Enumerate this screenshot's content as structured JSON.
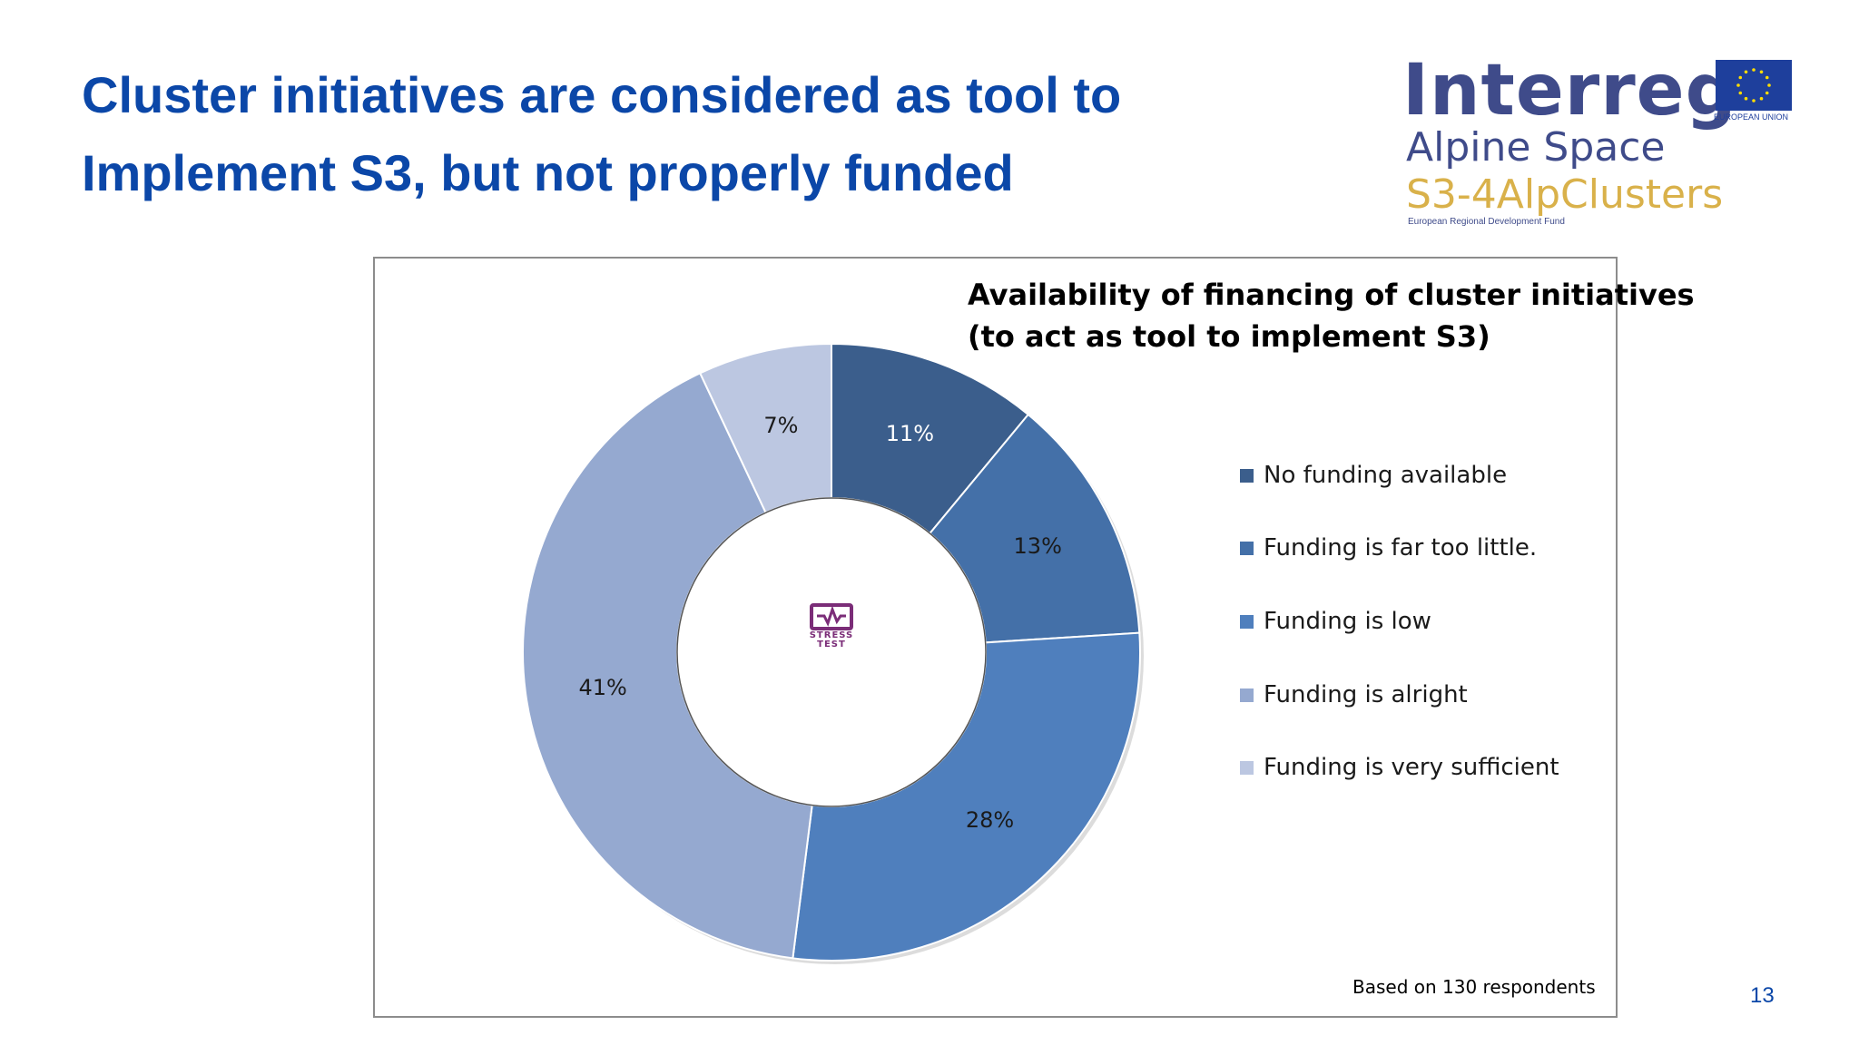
{
  "slide": {
    "title_lines": [
      "Cluster initiatives are considered as tool to",
      "Implement S3, but not properly funded"
    ],
    "page_number": "13",
    "footnote": "Based on 130 respondents"
  },
  "logo": {
    "wordmark": "Interreg",
    "region": "Alpine Space",
    "project": "S3-4AlpClusters",
    "fund": "European Regional Development Fund",
    "eu_label": "EUROPEAN UNION",
    "colors": {
      "navy": "#3f4b8a",
      "gold": "#d9b14a",
      "eu_blue": "#1e3f9c",
      "eu_star": "#ffdd00"
    }
  },
  "badge": {
    "line1": "STRESS",
    "line2": "TEST",
    "icon": "stress-test-logo-icon",
    "color": "#7b2d78"
  },
  "chart_data": {
    "type": "pie",
    "variant": "donut",
    "title_lines": [
      "Availability of financing of cluster initiatives",
      "(to act as tool to implement S3)"
    ],
    "categories": [
      "No funding available",
      "Funding is far too little.",
      "Funding is low",
      "Funding is alright",
      "Funding is very sufficient"
    ],
    "values": [
      11,
      13,
      28,
      41,
      7
    ],
    "labels": [
      "11%",
      "13%",
      "28%",
      "41%",
      "7%"
    ],
    "colors": [
      "#3b5e8c",
      "#4470a8",
      "#4f7fbd",
      "#95a9d0",
      "#bcc7e1"
    ],
    "label_colors": [
      "#ffffff",
      "#1a1a1a",
      "#1a1a1a",
      "#1a1a1a",
      "#1a1a1a"
    ],
    "start_angle_deg": 0,
    "direction": "clockwise",
    "legend_position": "right"
  }
}
